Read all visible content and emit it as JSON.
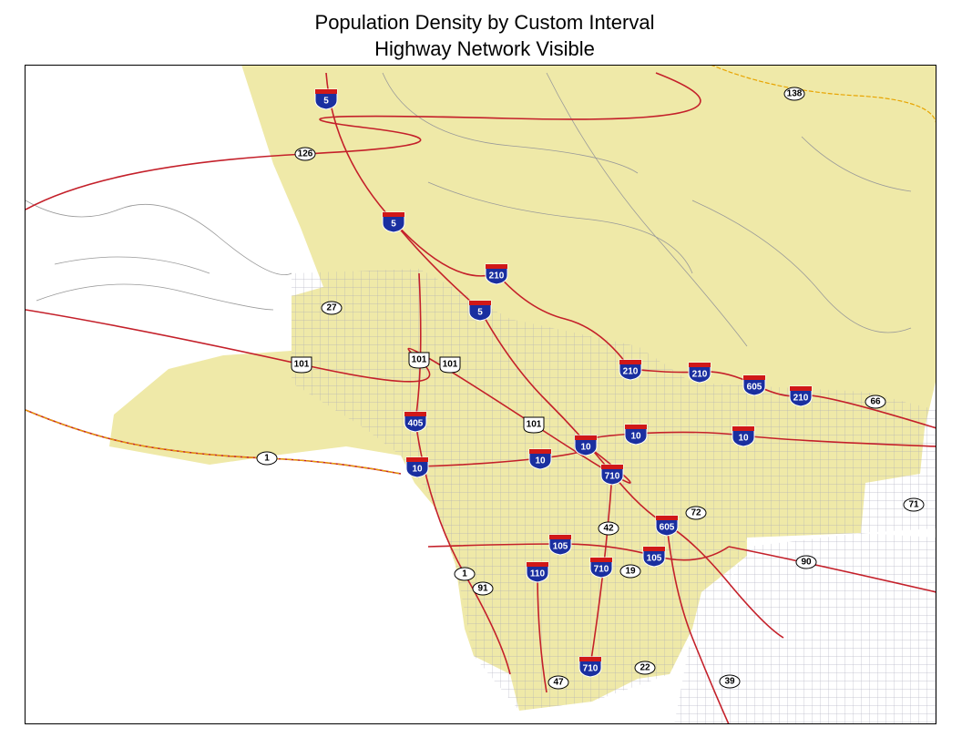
{
  "header": {
    "title": "Population Density by Custom Interval",
    "subtitle": "Highway Network Visible"
  },
  "map": {
    "interstate_shields": [
      "5",
      "5",
      "210",
      "5",
      "210",
      "210",
      "605",
      "210",
      "405",
      "10",
      "10",
      "10",
      "10",
      "10",
      "710",
      "605",
      "105",
      "105",
      "710",
      "110",
      "710"
    ],
    "us_route_shields": [
      "101",
      "101",
      "101",
      "101"
    ],
    "state_route_shields": [
      "138",
      "126",
      "27",
      "66",
      "1",
      "72",
      "71",
      "42",
      "90",
      "1",
      "19",
      "91",
      "22",
      "47",
      "39"
    ]
  }
}
